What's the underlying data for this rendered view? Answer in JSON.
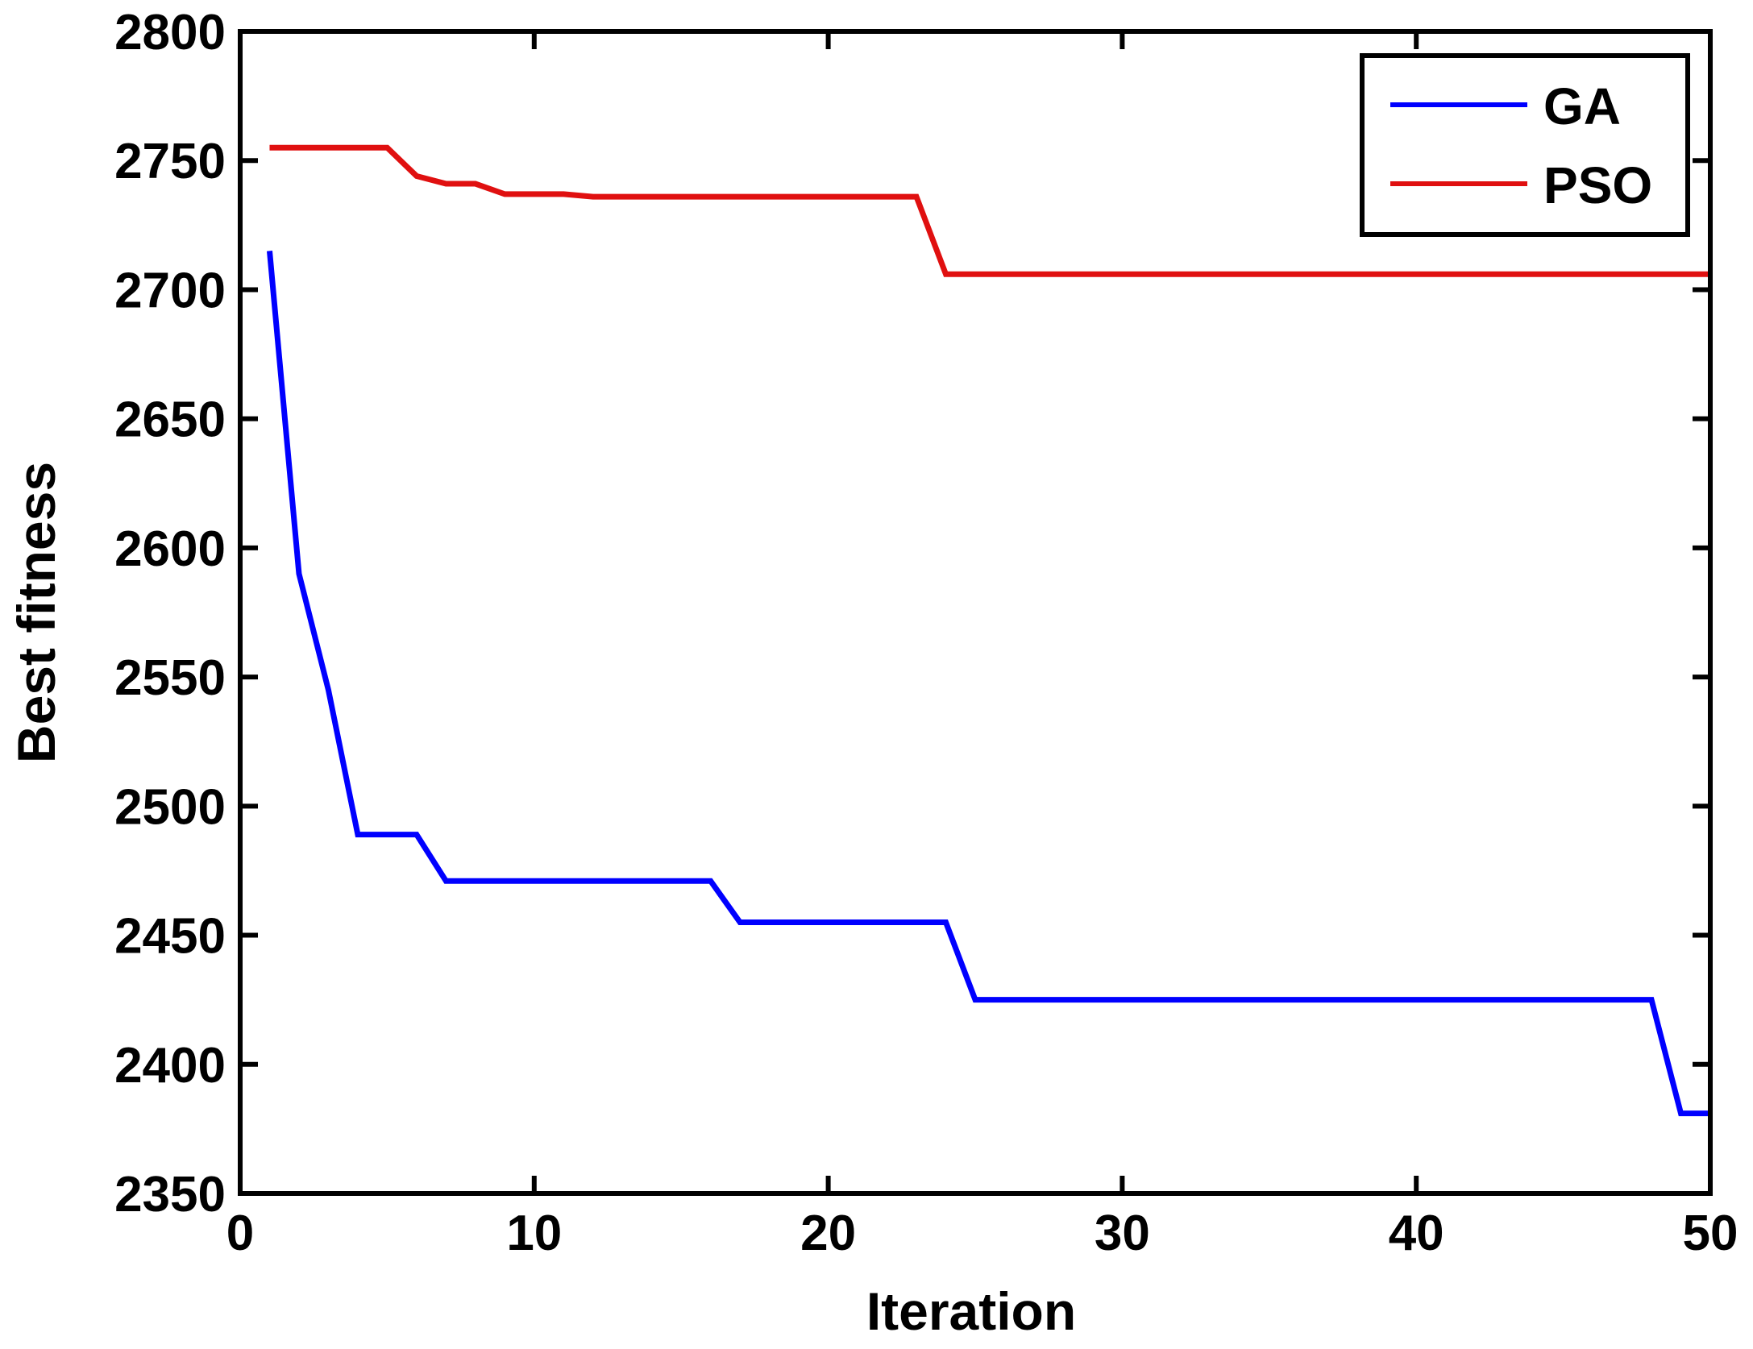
{
  "chart_data": {
    "type": "line",
    "title": "",
    "xlabel": "Iteration",
    "ylabel": "Best fitness",
    "xlim": [
      0,
      50
    ],
    "ylim": [
      2350,
      2800
    ],
    "xticks": [
      0,
      10,
      20,
      30,
      40,
      50
    ],
    "yticks": [
      2350,
      2400,
      2450,
      2500,
      2550,
      2600,
      2650,
      2700,
      2750,
      2800
    ],
    "grid": false,
    "legend_position": "top-right",
    "series": [
      {
        "name": "GA",
        "color": "#0000ff",
        "x": [
          1,
          2,
          3,
          4,
          5,
          6,
          7,
          8,
          9,
          10,
          11,
          12,
          13,
          14,
          15,
          16,
          17,
          18,
          19,
          20,
          21,
          22,
          23,
          24,
          25,
          26,
          27,
          28,
          29,
          30,
          31,
          32,
          33,
          34,
          35,
          36,
          37,
          38,
          39,
          40,
          41,
          42,
          43,
          44,
          45,
          46,
          47,
          48,
          49,
          50
        ],
        "y": [
          2715,
          2590,
          2545,
          2489,
          2489,
          2489,
          2471,
          2471,
          2471,
          2471,
          2471,
          2471,
          2471,
          2471,
          2471,
          2471,
          2455,
          2455,
          2455,
          2455,
          2455,
          2455,
          2455,
          2455,
          2425,
          2425,
          2425,
          2425,
          2425,
          2425,
          2425,
          2425,
          2425,
          2425,
          2425,
          2425,
          2425,
          2425,
          2425,
          2425,
          2425,
          2425,
          2425,
          2425,
          2425,
          2425,
          2425,
          2425,
          2381,
          2381
        ]
      },
      {
        "name": "PSO",
        "color": "#e01010",
        "x": [
          1,
          2,
          3,
          4,
          5,
          6,
          7,
          8,
          9,
          10,
          11,
          12,
          13,
          14,
          15,
          16,
          17,
          18,
          19,
          20,
          21,
          22,
          23,
          24,
          25,
          26,
          27,
          28,
          29,
          30,
          31,
          32,
          33,
          34,
          35,
          36,
          37,
          38,
          39,
          40,
          41,
          42,
          43,
          44,
          45,
          46,
          47,
          48,
          49,
          50
        ],
        "y": [
          2755,
          2755,
          2755,
          2755,
          2755,
          2744,
          2741,
          2741,
          2737,
          2737,
          2737,
          2736,
          2736,
          2736,
          2736,
          2736,
          2736,
          2736,
          2736,
          2736,
          2736,
          2736,
          2736,
          2706,
          2706,
          2706,
          2706,
          2706,
          2706,
          2706,
          2706,
          2706,
          2706,
          2706,
          2706,
          2706,
          2706,
          2706,
          2706,
          2706,
          2706,
          2706,
          2706,
          2706,
          2706,
          2706,
          2706,
          2706,
          2706,
          2706
        ]
      }
    ]
  }
}
